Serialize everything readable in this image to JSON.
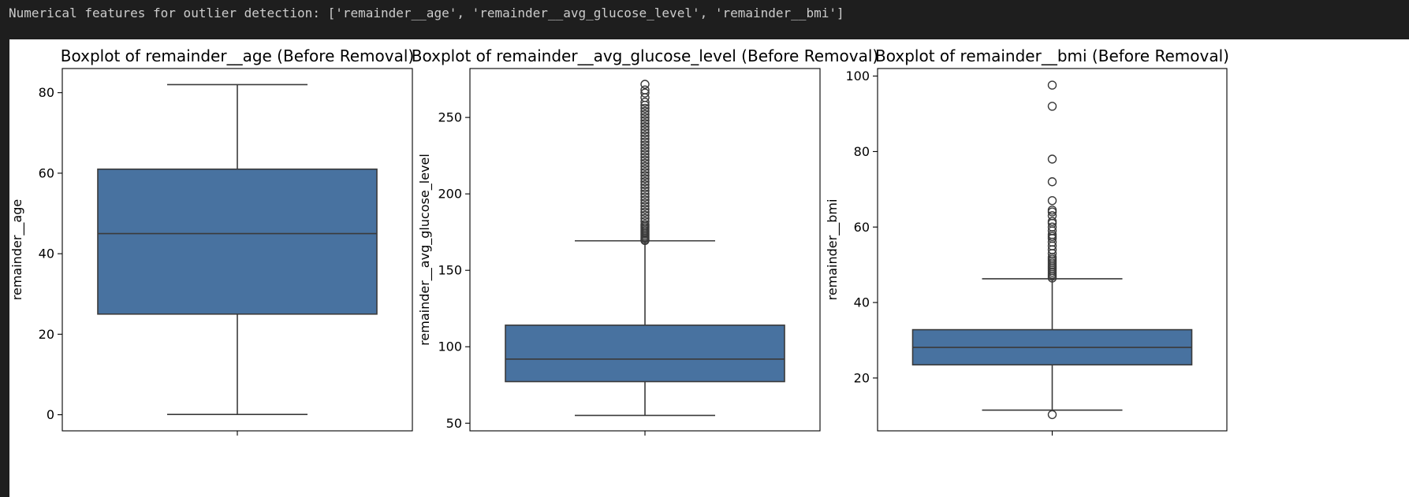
{
  "console": {
    "text": "Numerical features for outlier detection: ['remainder__age', 'remainder__avg_glucose_level', 'remainder__bmi']"
  },
  "chart_data": [
    {
      "type": "box",
      "title": "Boxplot of remainder__age (Before Removal)",
      "xlabel": "",
      "ylabel": "remainder__age",
      "ylim": [
        -4,
        86
      ],
      "yticks": [
        0,
        20,
        40,
        60,
        80
      ],
      "stats": {
        "whislo": 0.08,
        "q1": 25,
        "median": 45,
        "q3": 61,
        "whishi": 82
      },
      "fliers": [],
      "color": "#4872a0"
    },
    {
      "type": "box",
      "title": "Boxplot of remainder__avg_glucose_level (Before Removal)",
      "xlabel": "",
      "ylabel": "remainder__avg_glucose_level",
      "ylim": [
        45,
        282
      ],
      "yticks": [
        50,
        100,
        150,
        200,
        250
      ],
      "stats": {
        "whislo": 55.1,
        "q1": 77.2,
        "median": 91.9,
        "q3": 114.1,
        "whishi": 169.3
      },
      "fliers": [
        169.5,
        170,
        171,
        172,
        173,
        174,
        175,
        176,
        177,
        178,
        179,
        180,
        182,
        184,
        186,
        188,
        190,
        192,
        194,
        196,
        198,
        200,
        202,
        204,
        206,
        208,
        210,
        212,
        214,
        216,
        218,
        220,
        222,
        224,
        226,
        228,
        230,
        232,
        234,
        236,
        238,
        240,
        242,
        244,
        246,
        248,
        250,
        252,
        254,
        256,
        258,
        260,
        263,
        266,
        268,
        271.7
      ],
      "color": "#4872a0"
    },
    {
      "type": "box",
      "title": "Boxplot of remainder__bmi (Before Removal)",
      "xlabel": "",
      "ylabel": "remainder__bmi",
      "ylim": [
        6,
        102
      ],
      "yticks": [
        20,
        40,
        60,
        80,
        100
      ],
      "stats": {
        "whislo": 11.5,
        "q1": 23.5,
        "median": 28.1,
        "q3": 32.8,
        "whishi": 46.3
      },
      "fliers": [
        10.3,
        46.5,
        47,
        47.5,
        48,
        48.5,
        49,
        49.5,
        50,
        50.5,
        51,
        51.5,
        52,
        53,
        54,
        55,
        56,
        57,
        57.5,
        58,
        59,
        60,
        61,
        61.5,
        63,
        64,
        64.5,
        67,
        72,
        78,
        92,
        97.6
      ],
      "color": "#4872a0"
    }
  ]
}
